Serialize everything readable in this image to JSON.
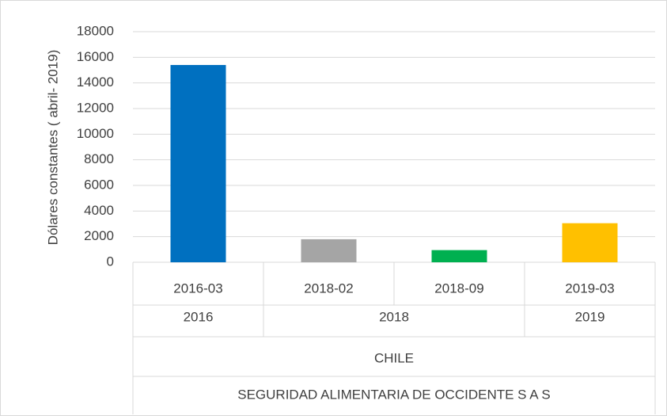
{
  "chart_data": {
    "type": "bar",
    "y_label": "Dólares constantes ( abril- 2019)",
    "categories": [
      "2016-03",
      "2018-02",
      "2018-09",
      "2019-03"
    ],
    "values": [
      15400,
      1800,
      950,
      3050
    ],
    "colors": [
      "#0070c0",
      "#a5a5a5",
      "#00b050",
      "#ffc000"
    ],
    "category_groups": [
      [
        {
          "label": "2016",
          "span": 1
        },
        {
          "label": "2018",
          "span": 2
        },
        {
          "label": "2019",
          "span": 1
        }
      ],
      [
        {
          "label": "CHILE",
          "span": 4
        }
      ],
      [
        {
          "label": "SEGURIDAD ALIMENTARIA DE OCCIDENTE S A S",
          "span": 4
        }
      ]
    ],
    "ylim": [
      0,
      18000
    ],
    "yticks": [
      0,
      2000,
      4000,
      6000,
      8000,
      10000,
      12000,
      14000,
      16000,
      18000
    ],
    "grid": true
  }
}
